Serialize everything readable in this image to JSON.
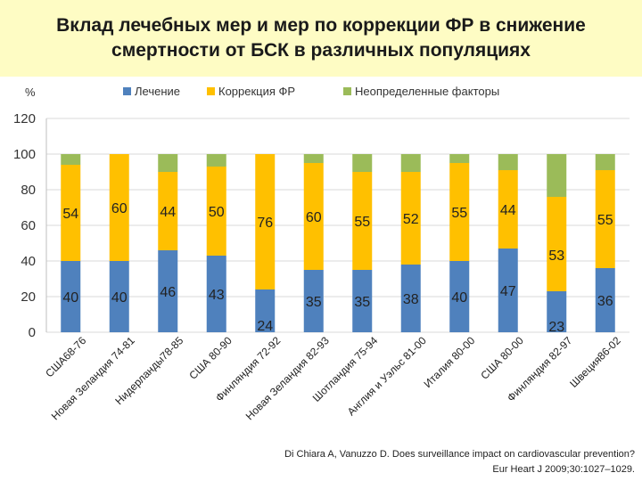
{
  "title": {
    "line1": "Вклад лечебных мер и мер по коррекции ФР в снижение",
    "line2": "смертности от БСК в различных популяциях"
  },
  "colors": {
    "treatment": "#4f81bd",
    "risk_factor": "#ffc000",
    "undetermined": "#9bbb59",
    "grid": "#d9d9d9",
    "title_bg": "#fefcc4"
  },
  "chart_data": {
    "type": "bar",
    "stacked": true,
    "ylabel": "%",
    "ylim": [
      0,
      120
    ],
    "yticks": [
      0,
      20,
      40,
      60,
      80,
      100,
      120
    ],
    "grid": true,
    "legend_position": "top",
    "categories": [
      "США68-76",
      "Новая Зеландия 74-81",
      "Нидерланды78-85",
      "США 80-90",
      "Финляндия 72-92",
      "Новая Зеландия 82-93",
      "Шотландия 75-94",
      "Англия и Уэльс 81-00",
      "Италия 80-00",
      "США 80-00",
      "Финляндия 82-97",
      "Швеция86-02"
    ],
    "series": [
      {
        "name": "Лечение",
        "color_key": "treatment",
        "values": [
          40,
          40,
          46,
          43,
          24,
          35,
          35,
          38,
          40,
          47,
          23,
          36
        ]
      },
      {
        "name": "Коррекция ФР",
        "color_key": "risk_factor",
        "values": [
          54,
          60,
          44,
          50,
          76,
          60,
          55,
          52,
          55,
          44,
          53,
          55
        ]
      },
      {
        "name": "Неопределенные факторы",
        "color_key": "undetermined",
        "values": [
          6,
          0,
          10,
          7,
          0,
          5,
          10,
          10,
          5,
          9,
          24,
          9
        ]
      }
    ],
    "data_labels": {
      "Лечение": [
        "40",
        "40",
        "46",
        "43",
        "24",
        "35",
        "35",
        "38",
        "40",
        "47",
        "23",
        "36"
      ],
      "Коррекция ФР": [
        "54",
        "60",
        "44",
        "50",
        "76",
        "60",
        "55",
        "52",
        "55",
        "44",
        "53",
        "55"
      ]
    }
  },
  "citation": {
    "line1": "Di Chiara A, Vanuzzo D. Does surveillance impact on cardiovascular prevention?",
    "line2": "Eur Heart J 2009;30:1027–1029."
  }
}
